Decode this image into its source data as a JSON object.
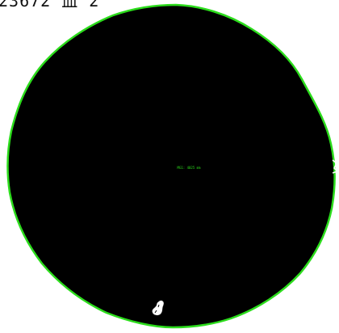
{
  "header": {
    "label": "23672 血 2"
  },
  "image": {
    "measurement_label": "MG1: 4025 mm",
    "colors": {
      "background": "#ffffff",
      "blob_fill": "#000000",
      "contour": "#2cdc1c",
      "annotation": "#2cdc1c",
      "artifact": "#ffffff"
    }
  }
}
